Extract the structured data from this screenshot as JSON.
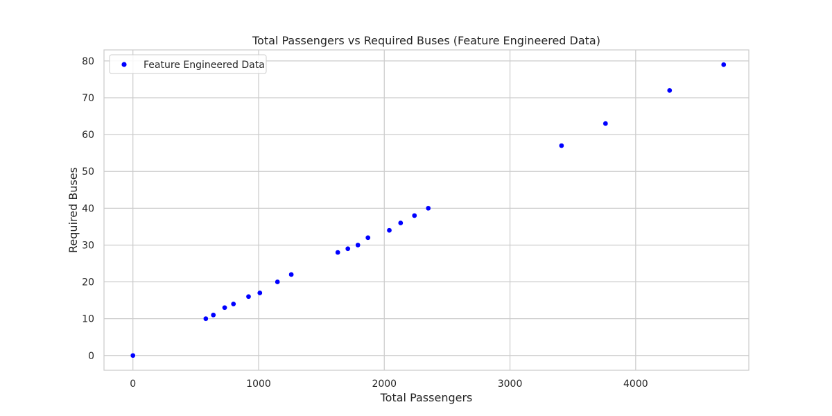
{
  "chart_data": {
    "type": "scatter",
    "title": "Total Passengers vs Required Buses (Feature Engineered Data)",
    "xlabel": "Total Passengers",
    "ylabel": "Required Buses",
    "xlim": [
      -230,
      4900
    ],
    "ylim": [
      -4,
      83
    ],
    "xticks": [
      0,
      1000,
      2000,
      3000,
      4000
    ],
    "yticks": [
      0,
      10,
      20,
      30,
      40,
      50,
      60,
      70,
      80
    ],
    "grid": true,
    "legend": "top-left",
    "series": [
      {
        "name": "Feature Engineered Data",
        "color": "#0000ff",
        "points": [
          {
            "x": 0,
            "y": 0
          },
          {
            "x": 580,
            "y": 10
          },
          {
            "x": 640,
            "y": 11
          },
          {
            "x": 730,
            "y": 13
          },
          {
            "x": 800,
            "y": 14
          },
          {
            "x": 920,
            "y": 16
          },
          {
            "x": 1010,
            "y": 17
          },
          {
            "x": 1150,
            "y": 20
          },
          {
            "x": 1260,
            "y": 22
          },
          {
            "x": 1630,
            "y": 28
          },
          {
            "x": 1710,
            "y": 29
          },
          {
            "x": 1790,
            "y": 30
          },
          {
            "x": 1870,
            "y": 32
          },
          {
            "x": 2040,
            "y": 34
          },
          {
            "x": 2130,
            "y": 36
          },
          {
            "x": 2240,
            "y": 38
          },
          {
            "x": 2350,
            "y": 40
          },
          {
            "x": 3410,
            "y": 57
          },
          {
            "x": 3760,
            "y": 63
          },
          {
            "x": 4270,
            "y": 72
          },
          {
            "x": 4700,
            "y": 79
          }
        ]
      }
    ]
  }
}
